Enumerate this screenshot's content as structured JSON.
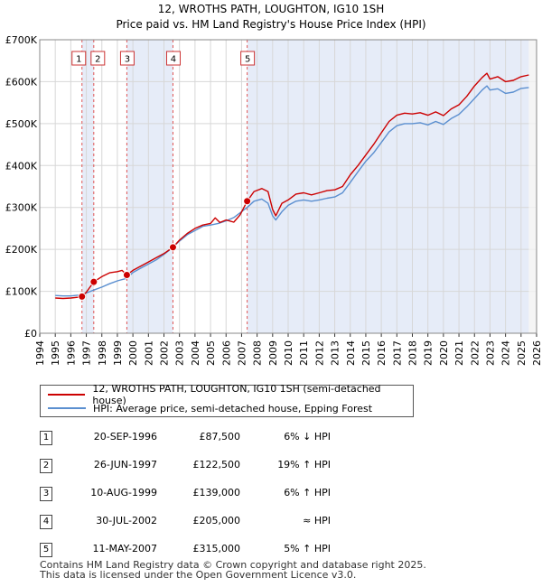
{
  "chart_data": {
    "type": "line",
    "title": "12, WROTHS PATH, LOUGHTON, IG10 1SH",
    "subtitle": "Price paid vs. HM Land Registry's House Price Index (HPI)",
    "xlim": [
      1994,
      2026
    ],
    "ylim": [
      0,
      700000
    ],
    "x_ticks": [
      "1994",
      "1995",
      "1996",
      "1997",
      "1998",
      "1999",
      "2000",
      "2001",
      "2002",
      "2003",
      "2004",
      "2005",
      "2006",
      "2007",
      "2008",
      "2009",
      "2010",
      "2011",
      "2012",
      "2013",
      "2014",
      "2015",
      "2016",
      "2017",
      "2018",
      "2019",
      "2020",
      "2021",
      "2022",
      "2023",
      "2024",
      "2025",
      "2026"
    ],
    "y_ticks": [
      {
        "value": 0,
        "label": "£0"
      },
      {
        "value": 100000,
        "label": "£100K"
      },
      {
        "value": 200000,
        "label": "£200K"
      },
      {
        "value": 300000,
        "label": "£300K"
      },
      {
        "value": 400000,
        "label": "£400K"
      },
      {
        "value": 500000,
        "label": "£500K"
      },
      {
        "value": 600000,
        "label": "£600K"
      },
      {
        "value": 700000,
        "label": "£700K"
      }
    ],
    "shaded_periods": [
      [
        1996.72,
        1997.48
      ],
      [
        1999.61,
        2002.58
      ],
      [
        2007.36,
        2025.5
      ]
    ],
    "series": [
      {
        "name": "12, WROTHS PATH, LOUGHTON, IG10 1SH (semi-detached house)",
        "color": "#cc0000",
        "points": [
          [
            1995.0,
            84000
          ],
          [
            1995.5,
            83000
          ],
          [
            1996.0,
            84000
          ],
          [
            1996.5,
            86000
          ],
          [
            1996.72,
            87500
          ],
          [
            1997.0,
            98000
          ],
          [
            1997.48,
            122500
          ],
          [
            1998.0,
            135000
          ],
          [
            1998.5,
            144000
          ],
          [
            1999.0,
            147000
          ],
          [
            1999.3,
            150000
          ],
          [
            1999.61,
            139000
          ],
          [
            2000.0,
            150000
          ],
          [
            2000.5,
            160000
          ],
          [
            2001.0,
            170000
          ],
          [
            2001.5,
            180000
          ],
          [
            2002.0,
            190000
          ],
          [
            2002.58,
            205000
          ],
          [
            2003.0,
            222000
          ],
          [
            2003.5,
            238000
          ],
          [
            2004.0,
            250000
          ],
          [
            2004.5,
            258000
          ],
          [
            2005.0,
            262000
          ],
          [
            2005.3,
            275000
          ],
          [
            2005.6,
            264000
          ],
          [
            2006.0,
            270000
          ],
          [
            2006.5,
            265000
          ],
          [
            2006.9,
            282000
          ],
          [
            2007.36,
            315000
          ],
          [
            2007.8,
            338000
          ],
          [
            2008.3,
            345000
          ],
          [
            2008.7,
            338000
          ],
          [
            2009.0,
            295000
          ],
          [
            2009.2,
            280000
          ],
          [
            2009.6,
            310000
          ],
          [
            2010.0,
            318000
          ],
          [
            2010.5,
            332000
          ],
          [
            2011.0,
            335000
          ],
          [
            2011.5,
            330000
          ],
          [
            2012.0,
            335000
          ],
          [
            2012.5,
            340000
          ],
          [
            2013.0,
            342000
          ],
          [
            2013.5,
            350000
          ],
          [
            2014.0,
            378000
          ],
          [
            2014.5,
            400000
          ],
          [
            2015.0,
            425000
          ],
          [
            2015.5,
            450000
          ],
          [
            2016.0,
            478000
          ],
          [
            2016.5,
            505000
          ],
          [
            2017.0,
            520000
          ],
          [
            2017.5,
            525000
          ],
          [
            2018.0,
            523000
          ],
          [
            2018.5,
            526000
          ],
          [
            2019.0,
            520000
          ],
          [
            2019.5,
            528000
          ],
          [
            2020.0,
            519000
          ],
          [
            2020.5,
            535000
          ],
          [
            2021.0,
            545000
          ],
          [
            2021.5,
            565000
          ],
          [
            2022.0,
            590000
          ],
          [
            2022.5,
            610000
          ],
          [
            2022.8,
            620000
          ],
          [
            2023.0,
            606000
          ],
          [
            2023.5,
            612000
          ],
          [
            2024.0,
            600000
          ],
          [
            2024.5,
            603000
          ],
          [
            2025.0,
            612000
          ],
          [
            2025.5,
            616000
          ]
        ]
      },
      {
        "name": "HPI: Average price, semi-detached house, Epping Forest",
        "color": "#5b8fd0",
        "points": [
          [
            1995.0,
            90000
          ],
          [
            1995.5,
            89000
          ],
          [
            1996.0,
            89000
          ],
          [
            1996.5,
            91000
          ],
          [
            1996.72,
            92000
          ],
          [
            1997.0,
            96000
          ],
          [
            1997.48,
            103000
          ],
          [
            1998.0,
            110000
          ],
          [
            1998.5,
            118000
          ],
          [
            1999.0,
            125000
          ],
          [
            1999.61,
            131000
          ],
          [
            2000.0,
            145000
          ],
          [
            2000.5,
            155000
          ],
          [
            2001.0,
            165000
          ],
          [
            2001.5,
            175000
          ],
          [
            2002.0,
            188000
          ],
          [
            2002.58,
            205000
          ],
          [
            2003.0,
            220000
          ],
          [
            2003.5,
            235000
          ],
          [
            2004.0,
            245000
          ],
          [
            2004.5,
            255000
          ],
          [
            2005.0,
            258000
          ],
          [
            2005.5,
            262000
          ],
          [
            2006.0,
            268000
          ],
          [
            2006.5,
            276000
          ],
          [
            2007.0,
            290000
          ],
          [
            2007.36,
            300000
          ],
          [
            2007.8,
            315000
          ],
          [
            2008.3,
            320000
          ],
          [
            2008.7,
            310000
          ],
          [
            2009.0,
            280000
          ],
          [
            2009.2,
            270000
          ],
          [
            2009.6,
            290000
          ],
          [
            2010.0,
            305000
          ],
          [
            2010.5,
            315000
          ],
          [
            2011.0,
            318000
          ],
          [
            2011.5,
            315000
          ],
          [
            2012.0,
            318000
          ],
          [
            2012.5,
            322000
          ],
          [
            2013.0,
            325000
          ],
          [
            2013.5,
            335000
          ],
          [
            2014.0,
            360000
          ],
          [
            2014.5,
            385000
          ],
          [
            2015.0,
            410000
          ],
          [
            2015.5,
            430000
          ],
          [
            2016.0,
            455000
          ],
          [
            2016.5,
            480000
          ],
          [
            2017.0,
            495000
          ],
          [
            2017.5,
            500000
          ],
          [
            2018.0,
            500000
          ],
          [
            2018.5,
            502000
          ],
          [
            2019.0,
            497000
          ],
          [
            2019.5,
            505000
          ],
          [
            2020.0,
            498000
          ],
          [
            2020.5,
            512000
          ],
          [
            2021.0,
            522000
          ],
          [
            2021.5,
            540000
          ],
          [
            2022.0,
            560000
          ],
          [
            2022.5,
            580000
          ],
          [
            2022.8,
            590000
          ],
          [
            2023.0,
            580000
          ],
          [
            2023.5,
            583000
          ],
          [
            2024.0,
            572000
          ],
          [
            2024.5,
            575000
          ],
          [
            2025.0,
            584000
          ],
          [
            2025.5,
            586000
          ]
        ]
      }
    ],
    "sales": [
      {
        "label": "1",
        "x": 1996.72,
        "price": 87500
      },
      {
        "label": "2",
        "x": 1997.48,
        "price": 122500
      },
      {
        "label": "3",
        "x": 1999.61,
        "price": 139000
      },
      {
        "label": "4",
        "x": 2002.58,
        "price": 205000
      },
      {
        "label": "5",
        "x": 2007.36,
        "price": 315000
      }
    ]
  },
  "legend": {
    "property": "12, WROTHS PATH, LOUGHTON, IG10 1SH (semi-detached house)",
    "hpi": "HPI: Average price, semi-detached house, Epping Forest"
  },
  "transactions": [
    {
      "num": "1",
      "date": "20-SEP-1996",
      "price": "£87,500",
      "hpi": "6% ↓ HPI"
    },
    {
      "num": "2",
      "date": "26-JUN-1997",
      "price": "£122,500",
      "hpi": "19% ↑ HPI"
    },
    {
      "num": "3",
      "date": "10-AUG-1999",
      "price": "£139,000",
      "hpi": "6% ↑ HPI"
    },
    {
      "num": "4",
      "date": "30-JUL-2002",
      "price": "£205,000",
      "hpi": "≈ HPI"
    },
    {
      "num": "5",
      "date": "11-MAY-2007",
      "price": "£315,000",
      "hpi": "5% ↑ HPI"
    }
  ],
  "footer": {
    "line1": "Contains HM Land Registry data © Crown copyright and database right 2025.",
    "line2": "This data is licensed under the Open Government Licence v3.0."
  }
}
